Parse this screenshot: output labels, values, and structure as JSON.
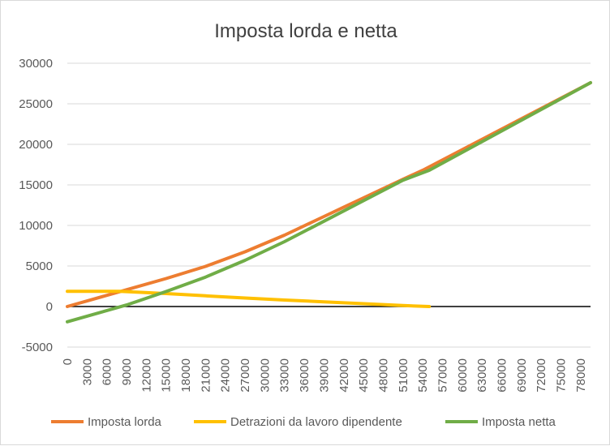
{
  "chart_data": {
    "type": "line",
    "title": "Imposta lorda e netta",
    "xlabel": "",
    "ylabel": "",
    "y_ticks": [
      "30000",
      "25000",
      "20000",
      "15000",
      "10000",
      "5000",
      "0",
      "-5000"
    ],
    "ylim": [
      -5000,
      30000
    ],
    "x_ticks": [
      "0",
      "3000",
      "6000",
      "9000",
      "12000",
      "15000",
      "18000",
      "21000",
      "24000",
      "27000",
      "30000",
      "33000",
      "36000",
      "39000",
      "42000",
      "45000",
      "48000",
      "51000",
      "54000",
      "57000",
      "60000",
      "63000",
      "66000",
      "69000",
      "72000",
      "75000",
      "78000"
    ],
    "xlim": [
      0,
      79500
    ],
    "grid": true,
    "legend_position": "bottom",
    "series": [
      {
        "name": "Imposta lorda",
        "color": "#ED7D31",
        "points": [
          [
            0,
            0
          ],
          [
            9000,
            2070
          ],
          [
            15000,
            3450
          ],
          [
            21000,
            4950
          ],
          [
            27000,
            6750
          ],
          [
            33000,
            8800
          ],
          [
            39000,
            11100
          ],
          [
            45000,
            13400
          ],
          [
            51000,
            15700
          ],
          [
            54000,
            16800
          ],
          [
            79500,
            27600
          ]
        ]
      },
      {
        "name": "Detrazioni da lavoro dipendente",
        "color": "#FFC000",
        "points": [
          [
            0,
            1880
          ],
          [
            8000,
            1880
          ],
          [
            15000,
            1600
          ],
          [
            21000,
            1320
          ],
          [
            27000,
            1050
          ],
          [
            33000,
            800
          ],
          [
            39000,
            580
          ],
          [
            45000,
            350
          ],
          [
            51000,
            120
          ],
          [
            55000,
            0
          ]
        ]
      },
      {
        "name": "Imposta netta",
        "color": "#70AD47",
        "points": [
          [
            0,
            -1880
          ],
          [
            9000,
            190
          ],
          [
            15000,
            1850
          ],
          [
            21000,
            3630
          ],
          [
            27000,
            5700
          ],
          [
            33000,
            8000
          ],
          [
            39000,
            10520
          ],
          [
            45000,
            13050
          ],
          [
            51000,
            15580
          ],
          [
            55000,
            16800
          ],
          [
            79500,
            27600
          ]
        ]
      }
    ]
  }
}
